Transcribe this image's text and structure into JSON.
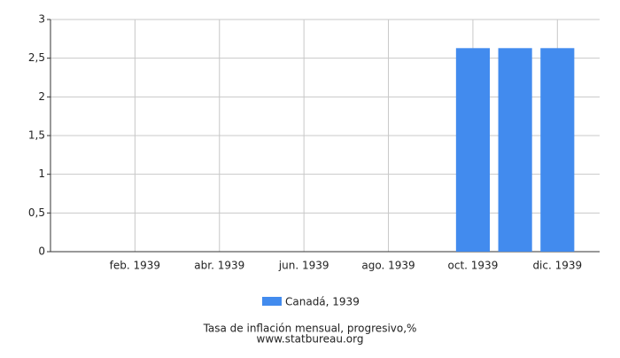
{
  "chart_data": {
    "type": "bar",
    "categories": [
      "",
      "feb. 1939",
      "",
      "abr. 1939",
      "",
      "jun. 1939",
      "",
      "ago. 1939",
      "",
      "oct. 1939",
      "",
      "dic. 1939"
    ],
    "series": [
      {
        "name": "Canadá, 1939",
        "color": "#428bee",
        "values": [
          0,
          0,
          0,
          0,
          0,
          0,
          0,
          0,
          0,
          2.63,
          2.63,
          2.63
        ]
      }
    ],
    "ylim": [
      0,
      3
    ],
    "yticks": [
      0,
      {
        "value": 0.5,
        "label": "0,5"
      },
      1,
      {
        "value": 1.5,
        "label": "1,5"
      },
      2,
      {
        "value": 2.5,
        "label": "2,5"
      },
      3
    ],
    "grid": true,
    "legend": "bottom",
    "caption": "Tasa de inflación mensual, progresivo,%",
    "source": "www.statbureau.org"
  }
}
